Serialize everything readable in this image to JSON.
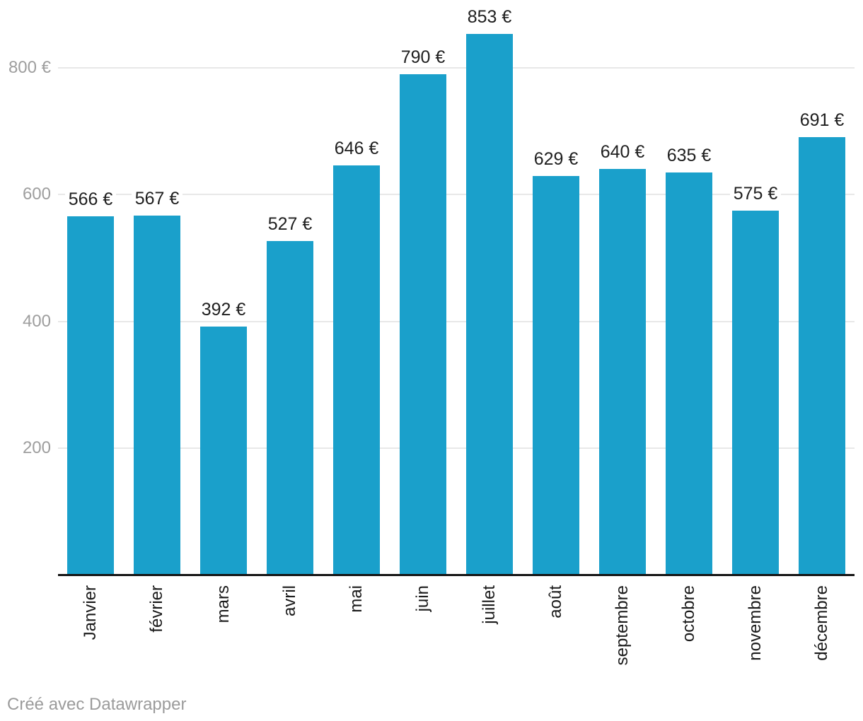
{
  "chart_data": {
    "type": "bar",
    "title": "",
    "categories": [
      "Janvier",
      "février",
      "mars",
      "avril",
      "mai",
      "juin",
      "juillet",
      "août",
      "septembre",
      "octobre",
      "novembre",
      "décembre"
    ],
    "values": [
      566,
      567,
      392,
      527,
      646,
      790,
      853,
      629,
      640,
      635,
      575,
      691
    ],
    "value_labels": [
      "566 €",
      "567 €",
      "392 €",
      "527 €",
      "646 €",
      "790 €",
      "853 €",
      "629 €",
      "640 €",
      "635 €",
      "575 €",
      "691 €"
    ],
    "unit": "€",
    "yticks": [
      {
        "value": 200,
        "label": "200"
      },
      {
        "value": 400,
        "label": "400"
      },
      {
        "value": 600,
        "label": "600"
      },
      {
        "value": 800,
        "label": "800 €"
      }
    ],
    "ylim": [
      0,
      907
    ],
    "grid": "horizontal",
    "legend": "none",
    "bar_color": "#1aa0cb",
    "colors": {
      "bar": "#1aa0cb",
      "gridline": "#e8e8e8",
      "axis_line": "#141414",
      "tick_text": "#9e9e9e",
      "label_text": "#1f1f1f"
    }
  },
  "footer": {
    "credit": "Créé avec Datawrapper"
  }
}
